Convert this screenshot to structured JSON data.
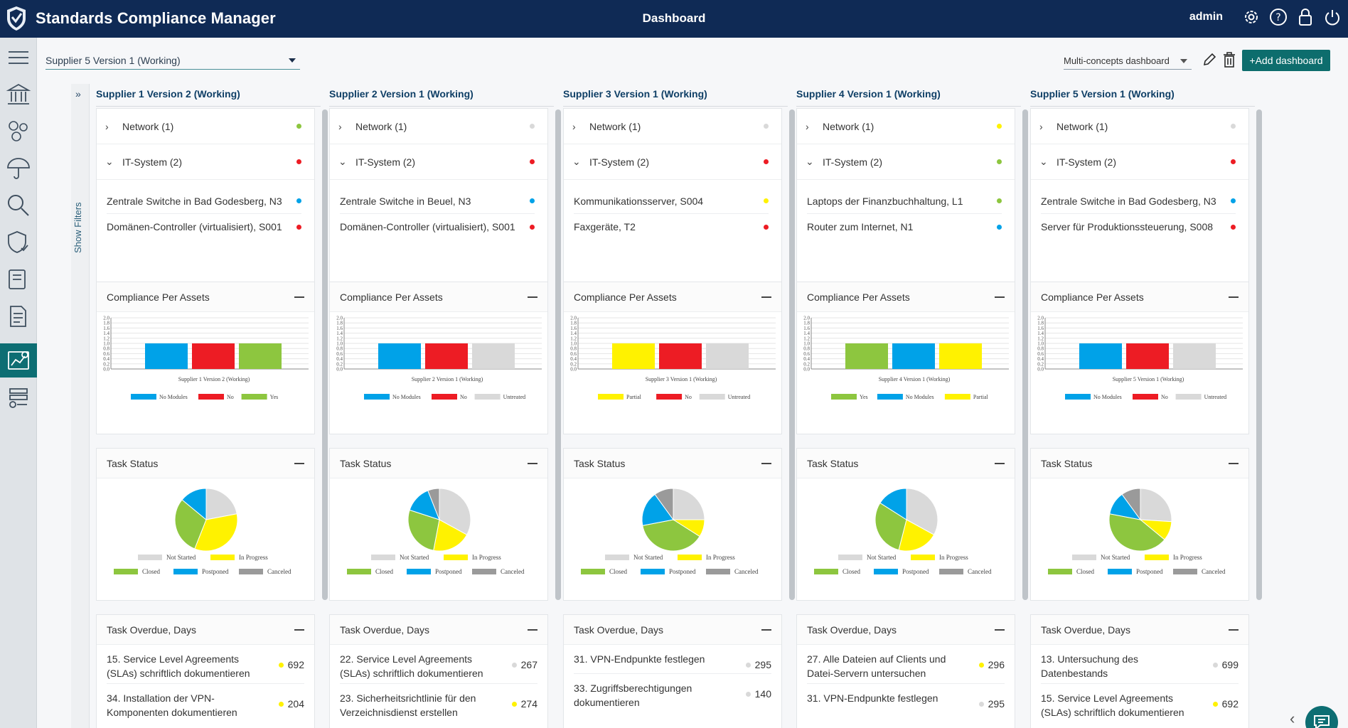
{
  "app": {
    "title": "Standards Compliance Manager",
    "page_title": "Dashboard",
    "user": "admin"
  },
  "toolbar": {
    "supplier_select": "Supplier 5 Version 1 (Working)",
    "dashboard_select": "Multi-concepts dashboard",
    "add_dashboard": "+Add dashboard"
  },
  "filters": {
    "label": "Show Filters"
  },
  "colors": {
    "green": "#8dc63f",
    "red": "#ed1c24",
    "blue": "#00a2e8",
    "yellow": "#fff200",
    "grey": "#d9d9d9",
    "darkgrey": "#9a9a9a",
    "header": "#0f2a55",
    "accent": "#0d6e73"
  },
  "panels": {
    "compliance": "Compliance Per Assets",
    "task_status": "Task Status",
    "task_overdue": "Task Overdue, Days"
  },
  "legend_task": [
    "Not Started",
    "In Progress",
    "Closed",
    "Postponed",
    "Canceled"
  ],
  "columns": [
    {
      "title": "Supplier 1 Version 2 (Working)",
      "network": {
        "label": "Network (1)",
        "status": "green"
      },
      "itsystem": {
        "label": "IT-System (2)",
        "status": "red"
      },
      "assets": [
        {
          "label": "Zentrale Switche in Bad Godesberg, N3",
          "status": "blue"
        },
        {
          "label": "Domänen-Controller (virtualisiert), S001",
          "status": "red"
        }
      ],
      "chart": {
        "caption": "Supplier 1 Version 2 (Working)",
        "bars": [
          {
            "name": "No Modules",
            "value": 1,
            "color": "blue"
          },
          {
            "name": "No",
            "value": 1,
            "color": "red"
          },
          {
            "name": "Yes",
            "value": 1,
            "color": "green"
          }
        ]
      },
      "pie": [
        {
          "name": "Not Started",
          "value": 22,
          "color": "grey"
        },
        {
          "name": "In Progress",
          "value": 34,
          "color": "yellow"
        },
        {
          "name": "Closed",
          "value": 30,
          "color": "green"
        },
        {
          "name": "Postponed",
          "value": 14,
          "color": "blue"
        },
        {
          "name": "Canceled",
          "value": 0,
          "color": "darkgrey"
        }
      ],
      "overdue": [
        {
          "label": "15. Service Level Agreements (SLAs) schriftlich dokumentieren",
          "value": "692",
          "status": "yellow"
        },
        {
          "label": "34. Installation der VPN-Komponenten dokumentieren",
          "value": "204",
          "status": "yellow"
        }
      ]
    },
    {
      "title": "Supplier 2 Version 1 (Working)",
      "network": {
        "label": "Network (1)",
        "status": "grey"
      },
      "itsystem": {
        "label": "IT-System (2)",
        "status": "red"
      },
      "assets": [
        {
          "label": "Zentrale Switche in Beuel, N3",
          "status": "blue"
        },
        {
          "label": "Domänen-Controller (virtualisiert), S001",
          "status": "red"
        }
      ],
      "chart": {
        "caption": "Supplier 2 Version 1 (Working)",
        "bars": [
          {
            "name": "No Modules",
            "value": 1,
            "color": "blue"
          },
          {
            "name": "No",
            "value": 1,
            "color": "red"
          },
          {
            "name": "Untreated",
            "value": 1,
            "color": "grey"
          }
        ]
      },
      "pie": [
        {
          "name": "Not Started",
          "value": 33,
          "color": "grey"
        },
        {
          "name": "In Progress",
          "value": 20,
          "color": "yellow"
        },
        {
          "name": "Closed",
          "value": 27,
          "color": "green"
        },
        {
          "name": "Postponed",
          "value": 14,
          "color": "blue"
        },
        {
          "name": "Canceled",
          "value": 6,
          "color": "darkgrey"
        }
      ],
      "overdue": [
        {
          "label": "22. Service Level Agreements (SLAs) schriftlich dokumentieren",
          "value": "267",
          "status": "grey"
        },
        {
          "label": "23. Sicherheitsrichtlinie für den Verzeichnisdienst erstellen",
          "value": "274",
          "status": "yellow"
        }
      ]
    },
    {
      "title": "Supplier 3 Version 1 (Working)",
      "network": {
        "label": "Network (1)",
        "status": "grey"
      },
      "itsystem": {
        "label": "IT-System (2)",
        "status": "red"
      },
      "assets": [
        {
          "label": "Kommunikationsserver, S004",
          "status": "yellow"
        },
        {
          "label": "Faxgeräte, T2",
          "status": "red"
        }
      ],
      "chart": {
        "caption": "Supplier 3 Version 1 (Working)",
        "bars": [
          {
            "name": "Partial",
            "value": 1,
            "color": "yellow"
          },
          {
            "name": "No",
            "value": 1,
            "color": "red"
          },
          {
            "name": "Untreated",
            "value": 1,
            "color": "grey"
          }
        ]
      },
      "pie": [
        {
          "name": "Not Started",
          "value": 25,
          "color": "grey"
        },
        {
          "name": "In Progress",
          "value": 9,
          "color": "yellow"
        },
        {
          "name": "Closed",
          "value": 38,
          "color": "green"
        },
        {
          "name": "Postponed",
          "value": 18,
          "color": "blue"
        },
        {
          "name": "Canceled",
          "value": 10,
          "color": "darkgrey"
        }
      ],
      "overdue": [
        {
          "label": "31. VPN-Endpunkte festlegen",
          "value": "295",
          "status": "grey"
        },
        {
          "label": "33. Zugriffsberechtigungen dokumentieren",
          "value": "140",
          "status": "grey"
        }
      ]
    },
    {
      "title": "Supplier 4 Version 1 (Working)",
      "network": {
        "label": "Network (1)",
        "status": "yellow"
      },
      "itsystem": {
        "label": "IT-System (2)",
        "status": "green"
      },
      "assets": [
        {
          "label": "Laptops der Finanzbuchhaltung, L1",
          "status": "green"
        },
        {
          "label": "Router zum Internet, N1",
          "status": "blue"
        }
      ],
      "chart": {
        "caption": "Supplier 4 Version 1 (Working)",
        "bars": [
          {
            "name": "Yes",
            "value": 1,
            "color": "green"
          },
          {
            "name": "No Modules",
            "value": 1,
            "color": "blue"
          },
          {
            "name": "Partial",
            "value": 1,
            "color": "yellow"
          }
        ]
      },
      "pie": [
        {
          "name": "Not Started",
          "value": 33,
          "color": "grey"
        },
        {
          "name": "In Progress",
          "value": 21,
          "color": "yellow"
        },
        {
          "name": "Closed",
          "value": 30,
          "color": "green"
        },
        {
          "name": "Postponed",
          "value": 16,
          "color": "blue"
        },
        {
          "name": "Canceled",
          "value": 0,
          "color": "darkgrey"
        }
      ],
      "overdue": [
        {
          "label": "27. Alle Dateien auf Clients und Datei-Servern untersuchen",
          "value": "296",
          "status": "yellow"
        },
        {
          "label": "31. VPN-Endpunkte festlegen",
          "value": "295",
          "status": "grey"
        }
      ]
    },
    {
      "title": "Supplier 5 Version 1 (Working)",
      "network": {
        "label": "Network (1)",
        "status": "grey"
      },
      "itsystem": {
        "label": "IT-System (2)",
        "status": "red"
      },
      "assets": [
        {
          "label": "Zentrale Switche in Bad Godesberg, N3",
          "status": "blue"
        },
        {
          "label": "Server für Produktionssteuerung, S008",
          "status": "red"
        }
      ],
      "chart": {
        "caption": "Supplier 5 Version 1 (Working)",
        "bars": [
          {
            "name": "No Modules",
            "value": 1,
            "color": "blue"
          },
          {
            "name": "No",
            "value": 1,
            "color": "red"
          },
          {
            "name": "Untreated",
            "value": 1,
            "color": "grey"
          }
        ]
      },
      "pie": [
        {
          "name": "Not Started",
          "value": 26,
          "color": "grey"
        },
        {
          "name": "In Progress",
          "value": 10,
          "color": "yellow"
        },
        {
          "name": "Closed",
          "value": 42,
          "color": "green"
        },
        {
          "name": "Postponed",
          "value": 12,
          "color": "blue"
        },
        {
          "name": "Canceled",
          "value": 10,
          "color": "darkgrey"
        }
      ],
      "overdue": [
        {
          "label": "13. Untersuchung des Datenbestands",
          "value": "699",
          "status": "grey"
        },
        {
          "label": "15. Service Level Agreements (SLAs) schriftlich dokumentieren",
          "value": "692",
          "status": "yellow"
        }
      ]
    }
  ],
  "chart_data": [
    {
      "type": "bar",
      "title": "Compliance Per Assets",
      "xlabel": "Supplier 1 Version 2 (Working)",
      "ylim": [
        0,
        2
      ],
      "series": [
        {
          "name": "No Modules",
          "values": [
            1
          ]
        },
        {
          "name": "No",
          "values": [
            1
          ]
        },
        {
          "name": "Yes",
          "values": [
            1
          ]
        }
      ]
    },
    {
      "type": "bar",
      "title": "Compliance Per Assets",
      "xlabel": "Supplier 2 Version 1 (Working)",
      "ylim": [
        0,
        2
      ],
      "series": [
        {
          "name": "No Modules",
          "values": [
            1
          ]
        },
        {
          "name": "No",
          "values": [
            1
          ]
        },
        {
          "name": "Untreated",
          "values": [
            1
          ]
        }
      ]
    },
    {
      "type": "bar",
      "title": "Compliance Per Assets",
      "xlabel": "Supplier 3 Version 1 (Working)",
      "ylim": [
        0,
        2
      ],
      "series": [
        {
          "name": "Partial",
          "values": [
            1
          ]
        },
        {
          "name": "No",
          "values": [
            1
          ]
        },
        {
          "name": "Untreated",
          "values": [
            1
          ]
        }
      ]
    },
    {
      "type": "bar",
      "title": "Compliance Per Assets",
      "xlabel": "Supplier 4 Version 1 (Working)",
      "ylim": [
        0,
        2
      ],
      "series": [
        {
          "name": "Yes",
          "values": [
            1
          ]
        },
        {
          "name": "No Modules",
          "values": [
            1
          ]
        },
        {
          "name": "Partial",
          "values": [
            1
          ]
        }
      ]
    },
    {
      "type": "bar",
      "title": "Compliance Per Assets",
      "xlabel": "Supplier 5 Version 1 (Working)",
      "ylim": [
        0,
        2
      ],
      "series": [
        {
          "name": "No Modules",
          "values": [
            1
          ]
        },
        {
          "name": "No",
          "values": [
            1
          ]
        },
        {
          "name": "Untreated",
          "values": [
            1
          ]
        }
      ]
    },
    {
      "type": "pie",
      "title": "Task Status",
      "categories": [
        "Not Started",
        "In Progress",
        "Closed",
        "Postponed",
        "Canceled"
      ],
      "values": [
        22,
        34,
        30,
        14,
        0
      ]
    },
    {
      "type": "pie",
      "title": "Task Status",
      "categories": [
        "Not Started",
        "In Progress",
        "Closed",
        "Postponed",
        "Canceled"
      ],
      "values": [
        33,
        20,
        27,
        14,
        6
      ]
    },
    {
      "type": "pie",
      "title": "Task Status",
      "categories": [
        "Not Started",
        "In Progress",
        "Closed",
        "Postponed",
        "Canceled"
      ],
      "values": [
        25,
        9,
        38,
        18,
        10
      ]
    },
    {
      "type": "pie",
      "title": "Task Status",
      "categories": [
        "Not Started",
        "In Progress",
        "Closed",
        "Postponed",
        "Canceled"
      ],
      "values": [
        33,
        21,
        30,
        16,
        0
      ]
    },
    {
      "type": "pie",
      "title": "Task Status",
      "categories": [
        "Not Started",
        "In Progress",
        "Closed",
        "Postponed",
        "Canceled"
      ],
      "values": [
        26,
        10,
        42,
        12,
        10
      ]
    }
  ]
}
